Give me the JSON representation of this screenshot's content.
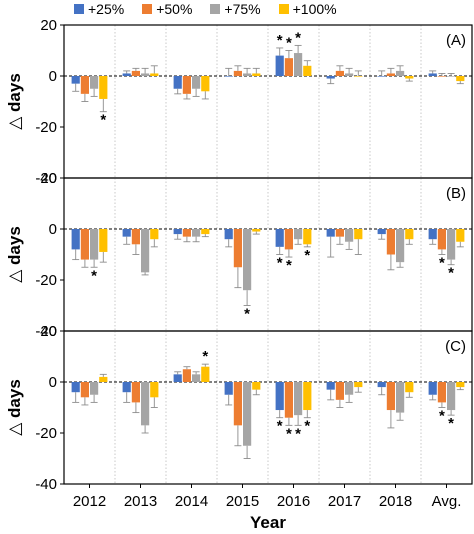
{
  "chart_data": {
    "type": "bar",
    "xlabel": "Year",
    "ylabel": "△ days",
    "categories": [
      "2012",
      "2013",
      "2014",
      "2015",
      "2016",
      "2017",
      "2018",
      "Avg."
    ],
    "series_names": [
      "+25%",
      "+50%",
      "+75%",
      "+100%"
    ],
    "colors": [
      "#4472C4",
      "#ED7D31",
      "#A5A5A5",
      "#FFC000"
    ],
    "ylim": [
      -40,
      20
    ],
    "yticks": [
      20,
      0,
      -20,
      -40
    ],
    "significance_marker": "*",
    "panels": [
      {
        "label": "(A)",
        "series": [
          {
            "name": "+25%",
            "values": [
              -3,
              1,
              -5,
              0,
              8,
              -1,
              0,
              1
            ],
            "errors": [
              3,
              1,
              2,
              3,
              3,
              2,
              2,
              1
            ]
          },
          {
            "name": "+50%",
            "values": [
              -7,
              2,
              -7,
              2,
              7,
              2,
              1,
              0
            ],
            "errors": [
              3,
              1,
              2,
              2,
              3,
              2,
              2,
              1
            ]
          },
          {
            "name": "+75%",
            "values": [
              -5,
              1,
              -5,
              1,
              9,
              1,
              2,
              0
            ],
            "errors": [
              3,
              2,
              3,
              2,
              3,
              2,
              2,
              1
            ]
          },
          {
            "name": "+100%",
            "values": [
              -9,
              1,
              -6,
              1,
              4,
              0,
              -1,
              -2
            ],
            "errors": [
              5,
              3,
              3,
              2,
              2,
              2,
              1,
              1
            ]
          }
        ],
        "significant": [
          [
            "2012",
            "+100%"
          ],
          [
            "2016",
            "+25%"
          ],
          [
            "2016",
            "+50%"
          ],
          [
            "2016",
            "+75%"
          ]
        ]
      },
      {
        "label": "(B)",
        "series": [
          {
            "name": "+25%",
            "values": [
              -8,
              -3,
              -2,
              -4,
              -7,
              -3,
              -2,
              -4
            ],
            "errors": [
              4,
              3,
              2,
              3,
              3,
              8,
              2,
              2
            ]
          },
          {
            "name": "+50%",
            "values": [
              -12,
              -6,
              -3,
              -15,
              -8,
              -3,
              -10,
              -8
            ],
            "errors": [
              3,
              4,
              2,
              8,
              3,
              3,
              6,
              2
            ]
          },
          {
            "name": "+75%",
            "values": [
              -12,
              -17,
              -3,
              -24,
              -4,
              -5,
              -13,
              -12
            ],
            "errors": [
              3,
              1,
              2,
              6,
              2,
              3,
              2,
              2
            ]
          },
          {
            "name": "+100%",
            "values": [
              -9,
              -4,
              -2,
              -1,
              -6,
              -4,
              -4,
              -5
            ],
            "errors": [
              4,
              3,
              1,
              1,
              1,
              6,
              2,
              2
            ]
          }
        ],
        "significant": [
          [
            "2012",
            "+75%"
          ],
          [
            "2015",
            "+75%"
          ],
          [
            "2016",
            "+25%"
          ],
          [
            "2016",
            "+50%"
          ],
          [
            "2016",
            "+100%"
          ],
          [
            "Avg.",
            "+50%"
          ],
          [
            "Avg.",
            "+75%"
          ]
        ]
      },
      {
        "label": "(C)",
        "series": [
          {
            "name": "+25%",
            "values": [
              -4,
              -4,
              3,
              -5,
              -11,
              -3,
              -2,
              -5
            ],
            "errors": [
              4,
              4,
              1,
              4,
              3,
              4,
              3,
              2
            ]
          },
          {
            "name": "+50%",
            "values": [
              -6,
              -8,
              5,
              -17,
              -14,
              -7,
              -11,
              -8
            ],
            "errors": [
              3,
              4,
              1,
              8,
              3,
              3,
              7,
              2
            ]
          },
          {
            "name": "+75%",
            "values": [
              -5,
              -17,
              3,
              -25,
              -13,
              -5,
              -12,
              -11
            ],
            "errors": [
              3,
              3,
              1,
              5,
              4,
              3,
              3,
              2
            ]
          },
          {
            "name": "+100%",
            "values": [
              2,
              -6,
              6,
              -3,
              -11,
              -2,
              -4,
              -2
            ],
            "errors": [
              1,
              4,
              1,
              2,
              3,
              2,
              2,
              1
            ]
          }
        ],
        "significant": [
          [
            "2014",
            "+100%"
          ],
          [
            "2016",
            "+25%"
          ],
          [
            "2016",
            "+50%"
          ],
          [
            "2016",
            "+75%"
          ],
          [
            "2016",
            "+100%"
          ],
          [
            "Avg.",
            "+50%"
          ],
          [
            "Avg.",
            "+75%"
          ]
        ]
      }
    ]
  }
}
